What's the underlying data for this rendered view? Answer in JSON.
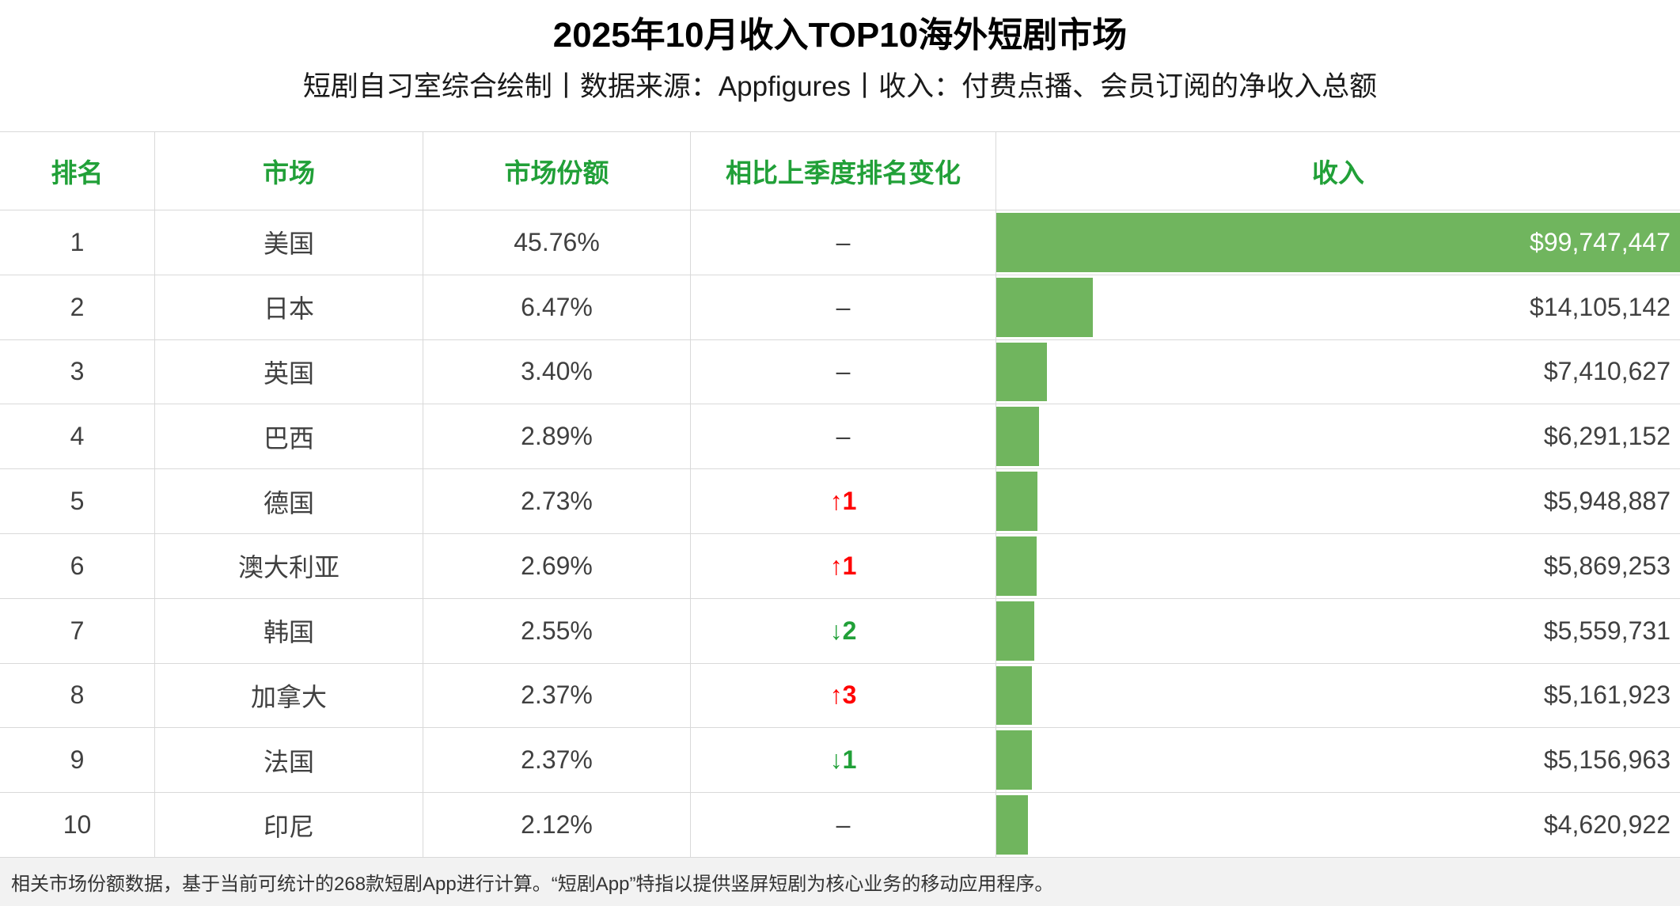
{
  "header": {
    "title": "2025年10月收入TOP10海外短剧市场",
    "subtitle": "短剧自习室综合绘制丨数据来源：Appfigures丨收入：付费点播、会员订阅的净收入总额"
  },
  "columns": {
    "rank": "排名",
    "market": "市场",
    "share": "市场份额",
    "change": "相比上季度排名变化",
    "revenue": "收入"
  },
  "rows": [
    {
      "rank": "1",
      "market": "美国",
      "share": "45.76%",
      "change": "–",
      "change_dir": "none",
      "revenue": "$99,747,447",
      "revenue_value": 99747447
    },
    {
      "rank": "2",
      "market": "日本",
      "share": "6.47%",
      "change": "–",
      "change_dir": "none",
      "revenue": "$14,105,142",
      "revenue_value": 14105142
    },
    {
      "rank": "3",
      "market": "英国",
      "share": "3.40%",
      "change": "–",
      "change_dir": "none",
      "revenue": "$7,410,627",
      "revenue_value": 7410627
    },
    {
      "rank": "4",
      "market": "巴西",
      "share": "2.89%",
      "change": "–",
      "change_dir": "none",
      "revenue": "$6,291,152",
      "revenue_value": 6291152
    },
    {
      "rank": "5",
      "market": "德国",
      "share": "2.73%",
      "change": "↑1",
      "change_dir": "up",
      "revenue": "$5,948,887",
      "revenue_value": 5948887
    },
    {
      "rank": "6",
      "market": "澳大利亚",
      "share": "2.69%",
      "change": "↑1",
      "change_dir": "up",
      "revenue": "$5,869,253",
      "revenue_value": 5869253
    },
    {
      "rank": "7",
      "market": "韩国",
      "share": "2.55%",
      "change": "↓2",
      "change_dir": "down",
      "revenue": "$5,559,731",
      "revenue_value": 5559731
    },
    {
      "rank": "8",
      "market": "加拿大",
      "share": "2.37%",
      "change": "↑3",
      "change_dir": "up",
      "revenue": "$5,161,923",
      "revenue_value": 5161923
    },
    {
      "rank": "9",
      "market": "法国",
      "share": "2.37%",
      "change": "↓1",
      "change_dir": "down",
      "revenue": "$5,156,963",
      "revenue_value": 5156963
    },
    {
      "rank": "10",
      "market": "印尼",
      "share": "2.12%",
      "change": "–",
      "change_dir": "none",
      "revenue": "$4,620,922",
      "revenue_value": 4620922
    }
  ],
  "footer": {
    "note": "相关市场份额数据，基于当前可统计的268款短剧App进行计算。“短剧App”特指以提供竖屏短剧为核心业务的移动应用程序。"
  },
  "colors": {
    "header_green": "#21a038",
    "bar_green": "#70b55e",
    "change_up_red": "#ff0000",
    "change_down_green": "#21a038",
    "border_gray": "#d9d9d9",
    "revenue_on_bar_text": "#ffffff"
  },
  "chart_data": {
    "type": "bar",
    "orientation": "horizontal",
    "title": "2025年10月收入TOP10海外短剧市场",
    "subtitle": "短剧自习室综合绘制丨数据来源：Appfigures丨收入：付费点播、会员订阅的净收入总额",
    "categories": [
      "美国",
      "日本",
      "英国",
      "巴西",
      "德国",
      "澳大利亚",
      "韩国",
      "加拿大",
      "法国",
      "印尼"
    ],
    "values": [
      99747447,
      14105142,
      7410627,
      6291152,
      5948887,
      5869253,
      5559731,
      5161923,
      5156963,
      4620922
    ],
    "shares_pct": [
      45.76,
      6.47,
      3.4,
      2.89,
      2.73,
      2.69,
      2.55,
      2.37,
      2.37,
      2.12
    ],
    "rank_changes": [
      "–",
      "–",
      "–",
      "–",
      "↑1",
      "↑1",
      "↓2",
      "↑3",
      "↓1",
      "–"
    ],
    "xlabel": "收入",
    "ylabel": "市场",
    "legend": "off",
    "grid": "off"
  }
}
